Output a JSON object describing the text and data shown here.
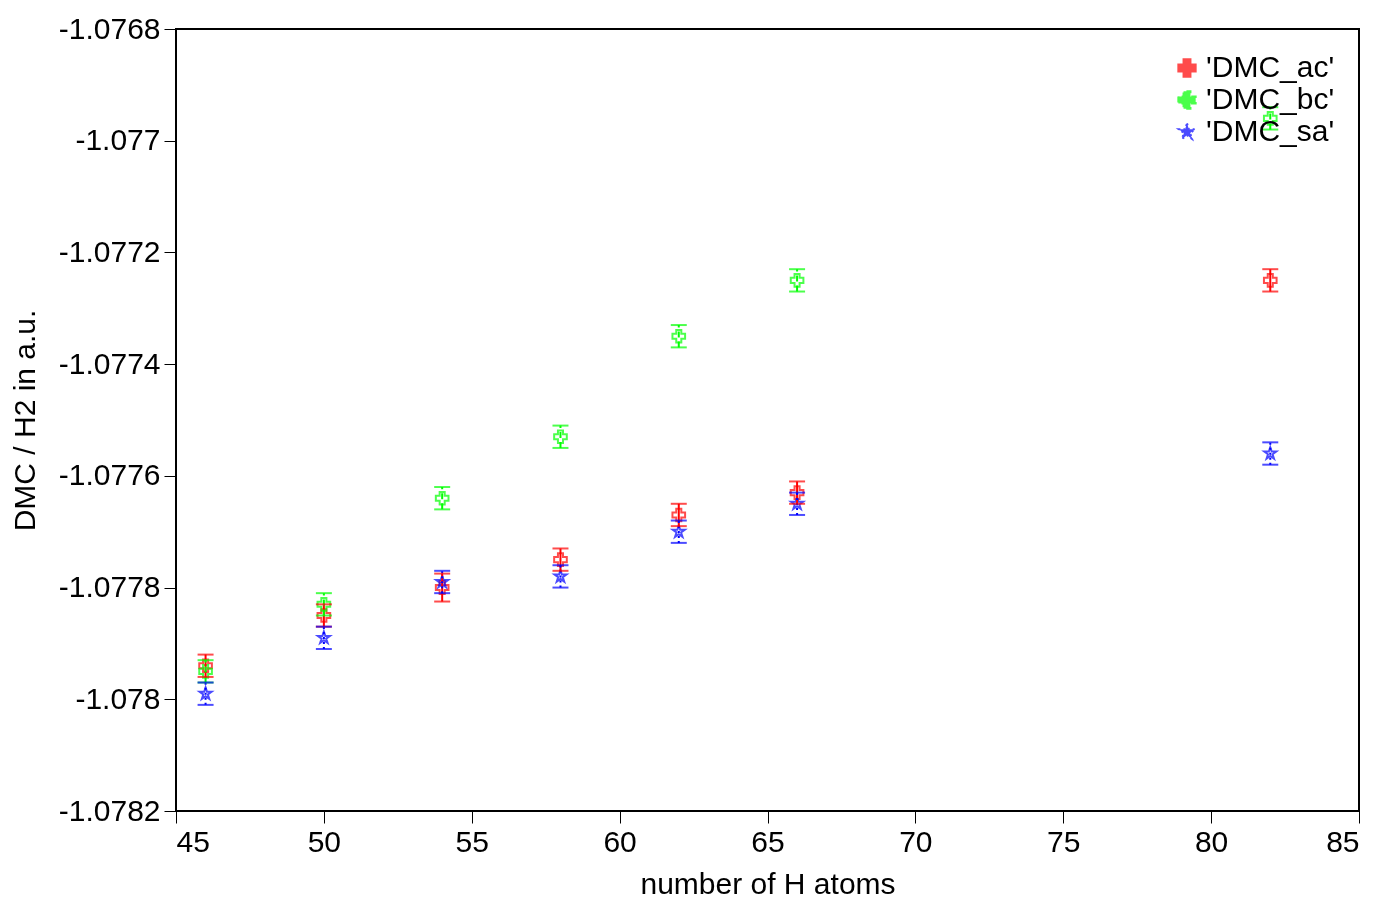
{
  "chart_data": {
    "type": "scatter",
    "xlabel": "number of H atoms",
    "ylabel": "DMC / H2 in a.u.",
    "xlim": [
      45,
      85
    ],
    "xticks": [
      45,
      50,
      55,
      60,
      65,
      70,
      75,
      80,
      85
    ],
    "ylim": [
      -1.0782,
      -1.0768
    ],
    "yticks": [
      -1.0782,
      -1.078,
      -1.0778,
      -1.0776,
      -1.0774,
      -1.0772,
      -1.077,
      -1.0768
    ],
    "grid": false,
    "legend": "top right",
    "x": [
      46,
      50,
      54,
      58,
      62,
      66,
      82
    ],
    "series": [
      {
        "name": "'DMC_ac'",
        "color": "#ff0000",
        "marker": "cross",
        "line_style": "solid",
        "values": [
          -1.07794,
          -1.07785,
          -1.0778,
          -1.07775,
          -1.07767,
          -1.07763,
          -1.07725
        ],
        "errors": [
          2e-05,
          2e-05,
          2.5e-05,
          2e-05,
          2e-05,
          2e-05,
          2e-05
        ]
      },
      {
        "name": "'DMC_bc'",
        "color": "#00ff00",
        "marker": "cross",
        "line_style": "dashed",
        "values": [
          -1.07795,
          -1.07783,
          -1.07764,
          -1.07753,
          -1.07735,
          -1.07725,
          -1.07696
        ],
        "errors": [
          2e-05,
          2e-05,
          2e-05,
          2e-05,
          2e-05,
          2e-05,
          2e-05
        ]
      },
      {
        "name": "'DMC_sa'",
        "color": "#0000ff",
        "marker": "star",
        "line_style": "dotted",
        "values": [
          -1.07799,
          -1.07789,
          -1.07779,
          -1.07778,
          -1.0777,
          -1.07765,
          -1.07756
        ],
        "errors": [
          2e-05,
          2e-05,
          2e-05,
          2e-05,
          2e-05,
          2e-05,
          2e-05
        ]
      }
    ]
  }
}
